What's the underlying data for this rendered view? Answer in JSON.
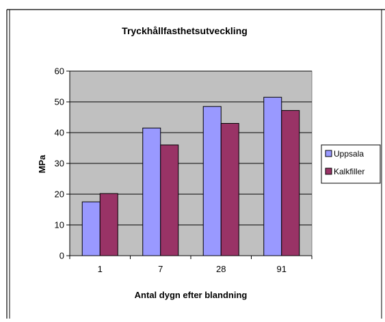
{
  "chart_data": {
    "type": "bar",
    "title": "Tryckhållfasthetsutveckling",
    "xlabel": "Antal dygn efter blandning",
    "ylabel": "MPa",
    "categories": [
      "1",
      "7",
      "28",
      "91"
    ],
    "series": [
      {
        "name": "Uppsala",
        "values": [
          17.5,
          41.5,
          48.5,
          51.5
        ],
        "color": "#9999ff"
      },
      {
        "name": "Kalkfiller",
        "values": [
          20.2,
          36.0,
          43.0,
          47.2
        ],
        "color": "#993366"
      }
    ],
    "ylim": [
      0,
      60
    ],
    "yticks": [
      "0",
      "10",
      "20",
      "30",
      "40",
      "50",
      "60"
    ],
    "grid": true,
    "legend_position": "right",
    "plot_background": "#c0c0c0"
  }
}
